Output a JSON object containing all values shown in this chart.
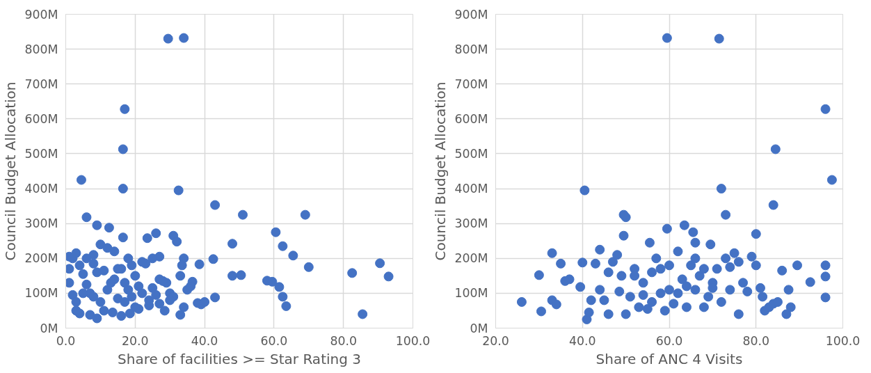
{
  "chart_data": [
    {
      "type": "scatter",
      "xlabel": "Share of facilities >= Star Rating 3",
      "ylabel": "Council Budget Allocation",
      "xlim": [
        0,
        100
      ],
      "xticks": [
        {
          "value": 0,
          "label": "0.0"
        },
        {
          "value": 20,
          "label": "20.0"
        },
        {
          "value": 40,
          "label": "40.0"
        },
        {
          "value": 60,
          "label": "60.0"
        },
        {
          "value": 80,
          "label": "80.0"
        },
        {
          "value": 100,
          "label": "100.0"
        }
      ],
      "ylim": [
        0,
        900
      ],
      "yticks": [
        {
          "value": 0,
          "label": "0M"
        },
        {
          "value": 100,
          "label": "100M"
        },
        {
          "value": 200,
          "label": "200M"
        },
        {
          "value": 300,
          "label": "300M"
        },
        {
          "value": 400,
          "label": "400M"
        },
        {
          "value": 500,
          "label": "500M"
        },
        {
          "value": 600,
          "label": "600M"
        },
        {
          "value": 700,
          "label": "700M"
        },
        {
          "value": 800,
          "label": "800M"
        },
        {
          "value": 900,
          "label": "900M"
        }
      ],
      "grid": true,
      "marker": "circle",
      "series": [
        {
          "color": "#4472c4",
          "x": [
            29.5,
            34,
            17,
            16.5,
            4.5,
            16.5,
            32.5,
            43,
            51,
            69,
            6,
            60.5,
            26,
            9,
            12.5,
            31,
            32,
            23.5,
            16.5,
            48,
            62.5,
            8,
            65.5,
            34,
            42.5,
            27,
            70,
            82.5,
            90.5,
            93,
            58,
            59.5,
            61.5,
            62.5,
            63.5,
            85.5,
            48,
            50.5,
            38.5,
            36.5,
            33.5,
            35,
            38,
            39,
            43,
            34,
            33,
            28.5,
            29,
            27,
            25,
            24,
            21,
            18.5,
            16,
            13.5,
            11,
            9,
            7,
            4,
            3,
            2,
            1,
            1,
            1,
            2,
            3,
            4,
            5,
            6,
            7,
            8,
            10,
            12,
            14,
            16,
            18,
            19,
            20,
            21,
            22,
            23,
            24,
            26,
            28,
            30,
            31,
            10,
            12,
            14,
            15,
            17,
            19,
            20,
            22,
            9,
            8,
            6,
            5,
            3,
            11,
            13,
            15,
            17,
            18,
            25,
            27,
            30,
            33,
            36,
            40
          ],
          "values": [
            830,
            832,
            628,
            513,
            425,
            400,
            395,
            353,
            325,
            325,
            318,
            275,
            272,
            295,
            288,
            265,
            248,
            258,
            260,
            242,
            235,
            210,
            208,
            200,
            198,
            205,
            175,
            158,
            186,
            148,
            136,
            133,
            118,
            90,
            63,
            40,
            150,
            152,
            183,
            133,
            180,
            110,
            72,
            68,
            88,
            60,
            38,
            50,
            130,
            140,
            115,
            65,
            55,
            42,
            35,
            45,
            50,
            28,
            38,
            42,
            50,
            95,
            130,
            170,
            205,
            200,
            215,
            180,
            155,
            125,
            100,
            90,
            75,
            110,
            140,
            170,
            200,
            180,
            150,
            120,
            100,
            185,
            80,
            95,
            135,
            100,
            90,
            240,
            230,
            220,
            170,
            130,
            90,
            60,
            190,
            160,
            185,
            200,
            100,
            75,
            165,
            130,
            85,
            75,
            110,
            200,
            70,
            80,
            150,
            120,
            75
          ]
        }
      ]
    },
    {
      "type": "scatter",
      "xlabel": "Share of ANC 4 Visits",
      "ylabel": "Council Budget Allocation",
      "xlim": [
        20,
        100
      ],
      "xticks": [
        {
          "value": 20,
          "label": "20.0"
        },
        {
          "value": 40,
          "label": "40.0"
        },
        {
          "value": 60,
          "label": "60.0"
        },
        {
          "value": 80,
          "label": "80.0"
        },
        {
          "value": 100,
          "label": "100.0"
        }
      ],
      "ylim": [
        0,
        900
      ],
      "yticks": [
        {
          "value": 0,
          "label": "0M"
        },
        {
          "value": 100,
          "label": "100M"
        },
        {
          "value": 200,
          "label": "200M"
        },
        {
          "value": 300,
          "label": "300M"
        },
        {
          "value": 400,
          "label": "400M"
        },
        {
          "value": 500,
          "label": "500M"
        },
        {
          "value": 600,
          "label": "600M"
        },
        {
          "value": 700,
          "label": "700M"
        },
        {
          "value": 800,
          "label": "800M"
        },
        {
          "value": 900,
          "label": "900M"
        }
      ],
      "grid": true,
      "marker": "circle",
      "series": [
        {
          "color": "#4472c4",
          "x": [
            59.5,
            71.5,
            96,
            84.5,
            97.5,
            40.5,
            72,
            84,
            73,
            49.5,
            50,
            59.5,
            80,
            63.5,
            65.5,
            49.5,
            55.5,
            66,
            69.5,
            33,
            35,
            37,
            30,
            26,
            30.5,
            33,
            34,
            39.5,
            40,
            41,
            41.5,
            42,
            43,
            44,
            45,
            46,
            47,
            48,
            48.5,
            49,
            50,
            51,
            52,
            53,
            54,
            55,
            56,
            57,
            58,
            59,
            60,
            61,
            62,
            63,
            64,
            65,
            66,
            67,
            68,
            69,
            70,
            71,
            72,
            73,
            74,
            75,
            76,
            77,
            78,
            79,
            80,
            81,
            81.5,
            82,
            83,
            84,
            85,
            86,
            87,
            87.5,
            88,
            89.5,
            92.5,
            96,
            96,
            96,
            36,
            44,
            46,
            52,
            54,
            56,
            58,
            60,
            62,
            64,
            66,
            68,
            70,
            74,
            76
          ],
          "values": [
            832,
            830,
            628,
            513,
            425,
            395,
            400,
            353,
            325,
            325,
            318,
            285,
            270,
            295,
            275,
            265,
            245,
            245,
            240,
            215,
            185,
            140,
            152,
            75,
            48,
            80,
            68,
            118,
            188,
            25,
            45,
            80,
            185,
            225,
            80,
            40,
            190,
            210,
            105,
            150,
            40,
            90,
            170,
            60,
            130,
            55,
            160,
            200,
            100,
            50,
            180,
            70,
            220,
            140,
            120,
            180,
            110,
            150,
            60,
            90,
            130,
            170,
            75,
            200,
            110,
            215,
            40,
            130,
            105,
            205,
            180,
            115,
            90,
            50,
            60,
            70,
            75,
            165,
            40,
            110,
            60,
            180,
            132,
            180,
            148,
            88,
            135,
            110,
            160,
            150,
            95,
            75,
            170,
            110,
            100,
            60,
            200,
            170,
            115,
            175,
            190
          ]
        }
      ]
    }
  ]
}
